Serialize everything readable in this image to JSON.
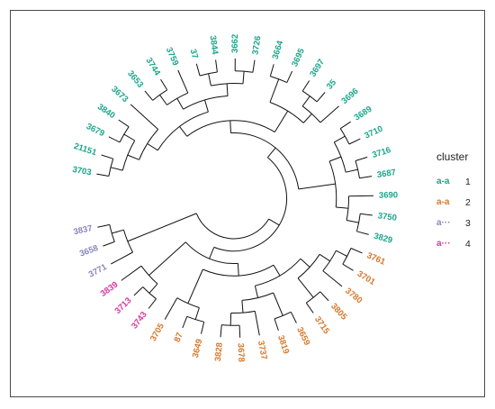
{
  "chart_data": {
    "type": "circular-dendrogram",
    "legend": {
      "title": "cluster",
      "placement": "right",
      "items": [
        {
          "key": "a-a",
          "label": "1",
          "color": "#1aa58a"
        },
        {
          "key": "a-a",
          "label": "2",
          "color": "#d6782a"
        },
        {
          "key": "a···",
          "label": "3",
          "color": "#8b85bd"
        },
        {
          "key": "a···",
          "label": "4",
          "color": "#d9379c"
        }
      ]
    },
    "clusters": {
      "1": {
        "color": "#1aa58a",
        "tips": [
          "3703",
          "21151",
          "3679",
          "3840",
          "3673",
          "3653",
          "3744",
          "3759",
          "37",
          "3844",
          "3662",
          "3726",
          "3664",
          "3695",
          "3697",
          "35",
          "3696",
          "3689",
          "3710",
          "3716",
          "3687",
          "3690",
          "3750",
          "3829"
        ]
      },
      "2": {
        "color": "#d6782a",
        "tips": [
          "3761",
          "3701",
          "3780",
          "3805",
          "3715",
          "3659",
          "3819",
          "3737",
          "3678",
          "3828",
          "3649",
          "87",
          "3705"
        ]
      },
      "3": {
        "color": "#8b85bd",
        "tips": [
          "3771",
          "3658",
          "3837"
        ]
      },
      "4": {
        "color": "#d9379c",
        "tips": [
          "3743",
          "3713",
          "3839"
        ]
      }
    },
    "tree": {
      "c": [
        {
          "c": [
            {
              "c": [
                {
                  "c": [
                    {
                      "c": [
                        {
                          "c": [
                            {
                              "c": [
                                {
                                  "c": [
                                    {
                                      "t": "3703"
                                    },
                                    {
                                      "t": "21151"
                                    }
                                  ]
                                },
                                {
                                  "c": [
                                    {
                                      "t": "3679"
                                    },
                                    {
                                      "t": "3840"
                                    }
                                  ]
                                }
                              ]
                            },
                            {
                              "t": "3673"
                            }
                          ]
                        },
                        {
                          "c": [
                            {
                              "c": [
                                {
                                  "c": [
                                    {
                                      "t": "3653"
                                    },
                                    {
                                      "t": "3744"
                                    }
                                  ]
                                },
                                {
                                  "t": "3759"
                                }
                              ]
                            },
                            {
                              "c": [
                                {
                                  "c": [
                                    {
                                      "t": "37"
                                    },
                                    {
                                      "t": "3844"
                                    }
                                  ]
                                },
                                {
                                  "c": [
                                    {
                                      "t": "3662"
                                    },
                                    {
                                      "t": "3726"
                                    }
                                  ]
                                }
                              ]
                            }
                          ]
                        }
                      ]
                    },
                    {
                      "c": [
                        {
                          "c": [
                            {
                              "t": "3664"
                            },
                            {
                              "t": "3695"
                            }
                          ]
                        },
                        {
                          "c": [
                            {
                              "c": [
                                {
                                  "t": "3697"
                                },
                                {
                                  "t": "35"
                                }
                              ]
                            },
                            {
                              "t": "3696"
                            }
                          ]
                        }
                      ]
                    }
                  ]
                },
                {
                  "c": [
                    {
                      "c": [
                        {
                          "c": [
                            {
                              "t": "3689"
                            },
                            {
                              "t": "3710"
                            }
                          ]
                        },
                        {
                          "c": [
                            {
                              "t": "3716"
                            },
                            {
                              "t": "3687"
                            }
                          ]
                        }
                      ]
                    },
                    {
                      "c": [
                        {
                          "t": "3690"
                        },
                        {
                          "c": [
                            {
                              "t": "3750"
                            },
                            {
                              "t": "3829"
                            }
                          ]
                        }
                      ]
                    }
                  ]
                }
              ]
            },
            {
              "c": [
                {
                  "c": [
                    {
                      "c": [
                        {
                          "c": [
                            {
                              "c": [
                                {
                                  "c": [
                                    {
                                      "t": "3761"
                                    },
                                    {
                                      "t": "3701"
                                    }
                                  ]
                                },
                                {
                                  "t": "3780"
                                }
                              ]
                            },
                            {
                              "c": [
                                {
                                  "t": "3805"
                                },
                                {
                                  "t": "3715"
                                }
                              ]
                            }
                          ]
                        },
                        {
                          "c": [
                            {
                              "c": [
                                {
                                  "t": "3659"
                                },
                                {
                                  "t": "3819"
                                }
                              ]
                            },
                            {
                              "c": [
                                {
                                  "t": "3737"
                                },
                                {
                                  "c": [
                                    {
                                      "t": "3678"
                                    },
                                    {
                                      "t": "3828"
                                    }
                                  ]
                                }
                              ]
                            }
                          ]
                        }
                      ]
                    },
                    {
                      "c": [
                        {
                          "c": [
                            {
                              "t": "3649"
                            },
                            {
                              "t": "87"
                            }
                          ]
                        },
                        {
                          "t": "3705"
                        }
                      ]
                    }
                  ]
                },
                {
                  "c": [
                    {
                      "c": [
                        {
                          "t": "3743"
                        },
                        {
                          "t": "3713"
                        }
                      ]
                    },
                    {
                      "t": "3839"
                    }
                  ]
                }
              ]
            }
          ]
        },
        {
          "c": [
            {
              "t": "3771"
            },
            {
              "c": [
                {
                  "t": "3658"
                },
                {
                  "t": "3837"
                }
              ]
            }
          ]
        }
      ]
    }
  }
}
